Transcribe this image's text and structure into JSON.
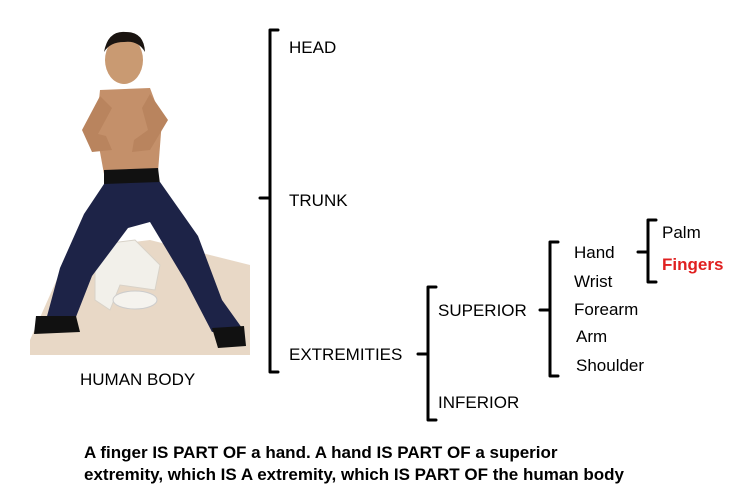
{
  "figure": {
    "photo_label": "HUMAN BODY",
    "level1": {
      "head": "HEAD",
      "trunk": "TRUNK",
      "extremities": "EXTREMITIES"
    },
    "level2": {
      "superior": "SUPERIOR",
      "inferior": "INFERIOR"
    },
    "level3": {
      "hand": "Hand",
      "wrist": "Wrist",
      "forearm": "Forearm",
      "arm": "Arm",
      "shoulder": "Shoulder"
    },
    "level4": {
      "palm": "Palm",
      "fingers": "Fingers"
    },
    "highlight_color": "#e02020"
  },
  "caption": {
    "line1": "A finger IS PART OF a hand. A hand IS PART OF a superior",
    "line2": "extremity, which IS A extremity, which IS PART OF the human body"
  }
}
